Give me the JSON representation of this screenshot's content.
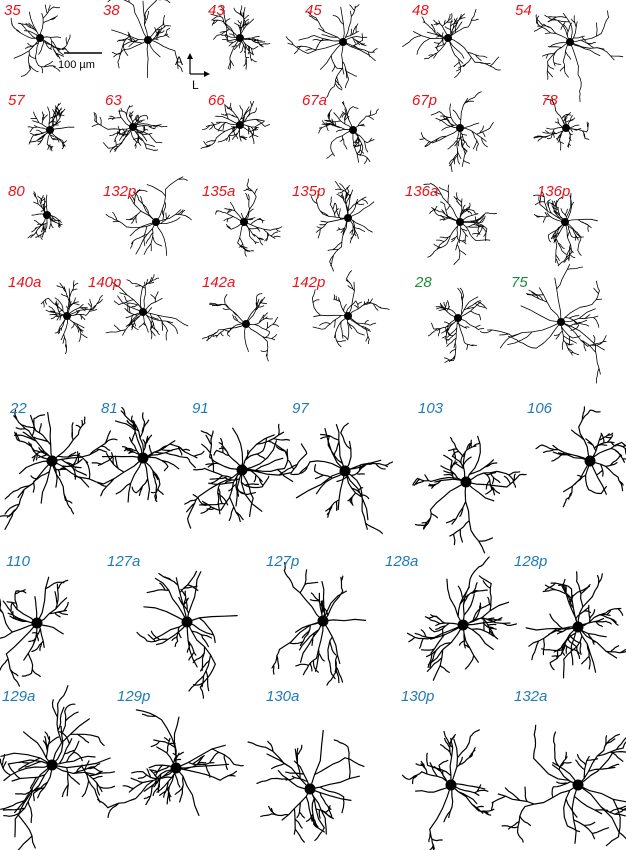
{
  "figure": {
    "colors": {
      "red": "#e8141c",
      "green": "#1a8a3a",
      "blue": "#1f7bb5",
      "ink": "#000000"
    },
    "scale_bar": {
      "label": "100 µm"
    },
    "compass": {
      "anterior": "A",
      "lateral": "L"
    },
    "cells": [
      {
        "label": "35",
        "color": "red",
        "size": 1,
        "seed": 3
      },
      {
        "label": "38",
        "color": "red",
        "size": 1,
        "seed": 7
      },
      {
        "label": "43",
        "color": "red",
        "size": 1,
        "seed": 11
      },
      {
        "label": "45",
        "color": "red",
        "size": 1,
        "seed": 13
      },
      {
        "label": "48",
        "color": "red",
        "size": 1,
        "seed": 17
      },
      {
        "label": "54",
        "color": "red",
        "size": 1,
        "seed": 19
      },
      {
        "label": "57",
        "color": "red",
        "size": 1,
        "seed": 23
      },
      {
        "label": "63",
        "color": "red",
        "size": 1,
        "seed": 29
      },
      {
        "label": "66",
        "color": "red",
        "size": 1,
        "seed": 31
      },
      {
        "label": "67a",
        "color": "red",
        "size": 1,
        "seed": 37
      },
      {
        "label": "67p",
        "color": "red",
        "size": 1,
        "seed": 41
      },
      {
        "label": "78",
        "color": "red",
        "size": 1,
        "seed": 43
      },
      {
        "label": "80",
        "color": "red",
        "size": 1,
        "seed": 47
      },
      {
        "label": "132p",
        "color": "red",
        "size": 1,
        "seed": 53
      },
      {
        "label": "135a",
        "color": "red",
        "size": 1,
        "seed": 59
      },
      {
        "label": "135p",
        "color": "red",
        "size": 1,
        "seed": 61
      },
      {
        "label": "136a",
        "color": "red",
        "size": 1,
        "seed": 67
      },
      {
        "label": "136p",
        "color": "red",
        "size": 1,
        "seed": 71
      },
      {
        "label": "140a",
        "color": "red",
        "size": 1,
        "seed": 73
      },
      {
        "label": "140p",
        "color": "red",
        "size": 1,
        "seed": 79
      },
      {
        "label": "142a",
        "color": "red",
        "size": 1,
        "seed": 83
      },
      {
        "label": "142p",
        "color": "red",
        "size": 1,
        "seed": 89
      },
      {
        "label": "28",
        "color": "green",
        "size": 1,
        "seed": 97
      },
      {
        "label": "75",
        "color": "green",
        "size": 1,
        "seed": 101
      },
      {
        "label": "22",
        "color": "blue",
        "size": 2,
        "seed": 103
      },
      {
        "label": "81",
        "color": "blue",
        "size": 2,
        "seed": 107
      },
      {
        "label": "91",
        "color": "blue",
        "size": 2,
        "seed": 109
      },
      {
        "label": "97",
        "color": "blue",
        "size": 2,
        "seed": 113
      },
      {
        "label": "103",
        "color": "blue",
        "size": 2,
        "seed": 127
      },
      {
        "label": "106",
        "color": "blue",
        "size": 2,
        "seed": 131
      },
      {
        "label": "110",
        "color": "blue",
        "size": 2,
        "seed": 137
      },
      {
        "label": "127a",
        "color": "blue",
        "size": 2,
        "seed": 139
      },
      {
        "label": "127p",
        "color": "blue",
        "size": 2,
        "seed": 149
      },
      {
        "label": "128a",
        "color": "blue",
        "size": 2,
        "seed": 151
      },
      {
        "label": "128p",
        "color": "blue",
        "size": 2,
        "seed": 157
      },
      {
        "label": "129a",
        "color": "blue",
        "size": 2,
        "seed": 163
      },
      {
        "label": "129p",
        "color": "blue",
        "size": 2,
        "seed": 167
      },
      {
        "label": "130a",
        "color": "blue",
        "size": 2,
        "seed": 173
      },
      {
        "label": "130p",
        "color": "blue",
        "size": 2,
        "seed": 179
      },
      {
        "label": "132a",
        "color": "blue",
        "size": 2,
        "seed": 181
      }
    ]
  }
}
